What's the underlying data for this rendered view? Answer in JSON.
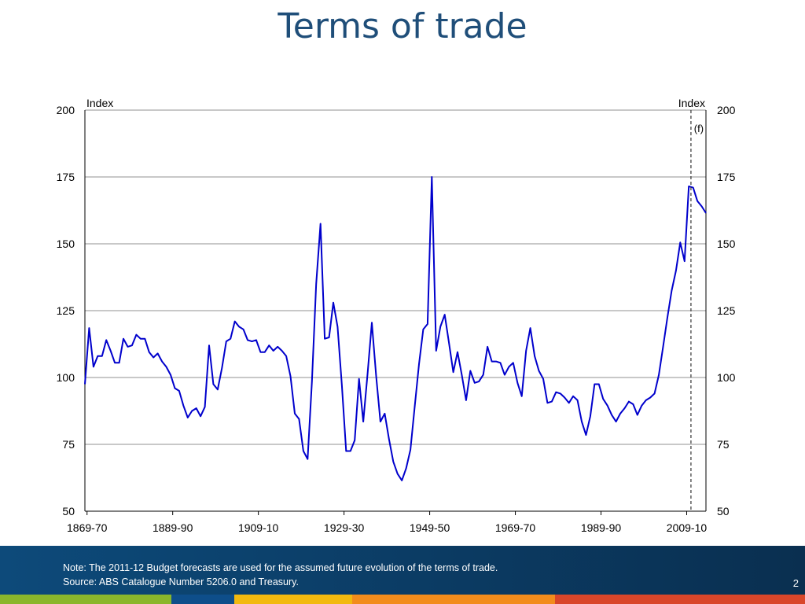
{
  "slide": {
    "title": "Terms of trade",
    "note": "Note: The 2011-12 Budget forecasts are used for the assumed future evolution of the terms of trade.",
    "source": "Source: ABS Catalogue Number 5206.0 and Treasury.",
    "page_number": "2"
  },
  "colors": {
    "title": "#1f4e79",
    "line": "#0000cc",
    "footer": "#0b3b63",
    "stripes": [
      "#8ab62c",
      "#0e4e8a",
      "#f2b90f",
      "#f28c1c",
      "#d9462a"
    ]
  },
  "chart_data": {
    "type": "line",
    "left_axis_label": "Index",
    "right_axis_label": "Index",
    "ylim": [
      50,
      200
    ],
    "yticks": [
      50,
      75,
      100,
      125,
      150,
      175,
      200
    ],
    "xticks": [
      "1869-70",
      "1889-90",
      "1909-10",
      "1929-30",
      "1949-50",
      "1969-70",
      "1989-90",
      "2009-10"
    ],
    "x_start_year": 1869,
    "x_end_year": 2014,
    "grid": true,
    "forecast_marker": {
      "year": 2010.5,
      "label": "(f)"
    },
    "series": [
      {
        "points": [
          [
            1869,
            97.5
          ],
          [
            1870,
            118.5
          ],
          [
            1871,
            104
          ],
          [
            1872,
            108
          ],
          [
            1873,
            108
          ],
          [
            1874,
            114
          ],
          [
            1875,
            110
          ],
          [
            1876,
            105.5
          ],
          [
            1877,
            105.5
          ],
          [
            1878,
            114.5
          ],
          [
            1879,
            111.5
          ],
          [
            1880,
            112
          ],
          [
            1881,
            116
          ],
          [
            1882,
            114.5
          ],
          [
            1883,
            114.5
          ],
          [
            1884,
            109.5
          ],
          [
            1885,
            107.5
          ],
          [
            1886,
            109
          ],
          [
            1887,
            106
          ],
          [
            1888,
            104
          ],
          [
            1889,
            101
          ],
          [
            1890,
            96
          ],
          [
            1891,
            95
          ],
          [
            1892,
            89.5
          ],
          [
            1893,
            85
          ],
          [
            1894,
            87.5
          ],
          [
            1895,
            88.5
          ],
          [
            1896,
            85.5
          ],
          [
            1897,
            89
          ],
          [
            1898,
            112
          ],
          [
            1899,
            97.5
          ],
          [
            1900,
            95.5
          ],
          [
            1901,
            103.5
          ],
          [
            1902,
            113.5
          ],
          [
            1903,
            114.5
          ],
          [
            1904,
            121
          ],
          [
            1905,
            119
          ],
          [
            1906,
            118
          ],
          [
            1907,
            114
          ],
          [
            1908,
            113.5
          ],
          [
            1909,
            114
          ],
          [
            1910,
            109.5
          ],
          [
            1911,
            109.5
          ],
          [
            1912,
            112
          ],
          [
            1913,
            110
          ],
          [
            1914,
            111.5
          ],
          [
            1915,
            110
          ],
          [
            1916,
            108
          ],
          [
            1917,
            100.5
          ],
          [
            1918,
            86.5
          ],
          [
            1919,
            84.5
          ],
          [
            1920,
            72.5
          ],
          [
            1921,
            69.5
          ],
          [
            1922,
            98.5
          ],
          [
            1923,
            135
          ],
          [
            1924,
            157.5
          ],
          [
            1925,
            114.5
          ],
          [
            1926,
            115
          ],
          [
            1927,
            128
          ],
          [
            1928,
            119
          ],
          [
            1929,
            97
          ],
          [
            1930,
            72.5
          ],
          [
            1931,
            72.5
          ],
          [
            1932,
            76.5
          ],
          [
            1933,
            99.5
          ],
          [
            1934,
            83.5
          ],
          [
            1935,
            101.5
          ],
          [
            1936,
            120.5
          ],
          [
            1937,
            100.5
          ],
          [
            1938,
            83.5
          ],
          [
            1939,
            86.5
          ],
          [
            1940,
            77
          ],
          [
            1941,
            68.5
          ],
          [
            1942,
            64
          ],
          [
            1943,
            61.5
          ],
          [
            1944,
            66
          ],
          [
            1945,
            73
          ],
          [
            1946,
            89
          ],
          [
            1947,
            105
          ],
          [
            1948,
            118
          ],
          [
            1949,
            120
          ],
          [
            1950,
            175
          ],
          [
            1951,
            110
          ],
          [
            1952,
            119
          ],
          [
            1953,
            123.5
          ],
          [
            1954,
            113
          ],
          [
            1955,
            102
          ],
          [
            1956,
            109.5
          ],
          [
            1957,
            101
          ],
          [
            1958,
            91.5
          ],
          [
            1959,
            102.5
          ],
          [
            1960,
            98
          ],
          [
            1961,
            98.5
          ],
          [
            1962,
            101
          ],
          [
            1963,
            111.5
          ],
          [
            1964,
            106
          ],
          [
            1965,
            106
          ],
          [
            1966,
            105.5
          ],
          [
            1967,
            101
          ],
          [
            1968,
            104
          ],
          [
            1969,
            105.5
          ],
          [
            1970,
            98
          ],
          [
            1971,
            93
          ],
          [
            1972,
            110
          ],
          [
            1973,
            118.5
          ],
          [
            1974,
            108
          ],
          [
            1975,
            102.5
          ],
          [
            1976,
            99.5
          ],
          [
            1977,
            90.5
          ],
          [
            1978,
            91
          ],
          [
            1979,
            94.5
          ],
          [
            1980,
            94
          ],
          [
            1981,
            92.5
          ],
          [
            1982,
            90.5
          ],
          [
            1983,
            93
          ],
          [
            1984,
            91.5
          ],
          [
            1985,
            83.5
          ],
          [
            1986,
            78.5
          ],
          [
            1987,
            85.5
          ],
          [
            1988,
            97.5
          ],
          [
            1989,
            97.5
          ],
          [
            1990,
            92
          ],
          [
            1991,
            89.5
          ],
          [
            1992,
            86
          ],
          [
            1993,
            83.5
          ],
          [
            1994,
            86.5
          ],
          [
            1995,
            88.5
          ],
          [
            1996,
            91
          ],
          [
            1997,
            90
          ],
          [
            1998,
            86
          ],
          [
            1999,
            89.5
          ],
          [
            2000,
            91.5
          ],
          [
            2001,
            92.5
          ],
          [
            2002,
            94
          ],
          [
            2003,
            101
          ],
          [
            2004,
            111.5
          ],
          [
            2005,
            122.5
          ],
          [
            2006,
            132.5
          ],
          [
            2007,
            140
          ],
          [
            2008,
            150.5
          ],
          [
            2009,
            143.5
          ],
          [
            2010,
            171.5
          ],
          [
            2011,
            171
          ],
          [
            2012,
            166
          ],
          [
            2013,
            164
          ],
          [
            2014,
            161.5
          ]
        ]
      }
    ]
  }
}
